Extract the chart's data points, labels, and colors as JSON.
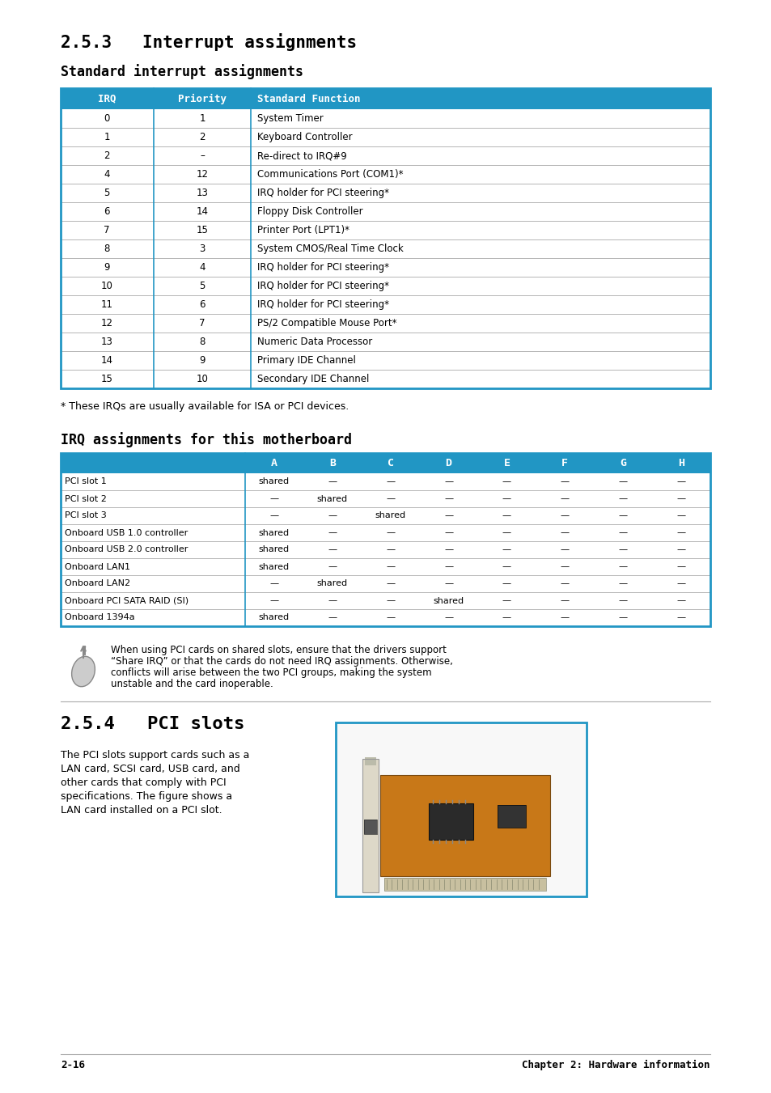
{
  "bg_color": "#ffffff",
  "header_blue": "#2196C4",
  "header_text_color": "#ffffff",
  "border_color": "#2196C4",
  "inner_line_color": "#aaaaaa",
  "section_title_1": "2.5.3   Interrupt assignments",
  "subsection_title_1": "Standard interrupt assignments",
  "subsection_title_2": "IRQ assignments for this motherboard",
  "section_title_2": "2.5.4   PCI slots",
  "table1_headers": [
    "IRQ",
    "Priority",
    "Standard Function"
  ],
  "table1_rows": [
    [
      "0",
      "1",
      "System Timer"
    ],
    [
      "1",
      "2",
      "Keyboard Controller"
    ],
    [
      "2",
      "–",
      "Re-direct to IRQ#9"
    ],
    [
      "4",
      "12",
      "Communications Port (COM1)*"
    ],
    [
      "5",
      "13",
      "IRQ holder for PCI steering*"
    ],
    [
      "6",
      "14",
      "Floppy Disk Controller"
    ],
    [
      "7",
      "15",
      "Printer Port (LPT1)*"
    ],
    [
      "8",
      "3",
      "System CMOS/Real Time Clock"
    ],
    [
      "9",
      "4",
      "IRQ holder for PCI steering*"
    ],
    [
      "10",
      "5",
      "IRQ holder for PCI steering*"
    ],
    [
      "11",
      "6",
      "IRQ holder for PCI steering*"
    ],
    [
      "12",
      "7",
      "PS/2 Compatible Mouse Port*"
    ],
    [
      "13",
      "8",
      "Numeric Data Processor"
    ],
    [
      "14",
      "9",
      "Primary IDE Channel"
    ],
    [
      "15",
      "10",
      "Secondary IDE Channel"
    ]
  ],
  "footnote": "* These IRQs are usually available for ISA or PCI devices.",
  "table2_col_headers": [
    "A",
    "B",
    "C",
    "D",
    "E",
    "F",
    "G",
    "H"
  ],
  "table2_rows": [
    [
      "PCI slot 1",
      "shared",
      "—",
      "—",
      "—",
      "—",
      "—",
      "—",
      "—"
    ],
    [
      "PCI slot 2",
      "—",
      "shared",
      "—",
      "—",
      "—",
      "—",
      "—",
      "—"
    ],
    [
      "PCI slot 3",
      "—",
      "—",
      "shared",
      "—",
      "—",
      "—",
      "—",
      "—"
    ],
    [
      "Onboard USB 1.0 controller",
      "shared",
      "—",
      "—",
      "—",
      "—",
      "—",
      "—",
      "—"
    ],
    [
      "Onboard USB 2.0 controller",
      "shared",
      "—",
      "—",
      "—",
      "—",
      "—",
      "—",
      "—"
    ],
    [
      "Onboard LAN1",
      "shared",
      "—",
      "—",
      "—",
      "—",
      "—",
      "—",
      "—"
    ],
    [
      "Onboard LAN2",
      "—",
      "shared",
      "—",
      "—",
      "—",
      "—",
      "—",
      "—"
    ],
    [
      "Onboard PCI SATA RAID (SI)",
      "—",
      "—",
      "—",
      "shared",
      "—",
      "—",
      "—",
      "—"
    ],
    [
      "Onboard 1394a",
      "shared",
      "—",
      "—",
      "—",
      "—",
      "—",
      "—",
      "—"
    ]
  ],
  "note_lines": [
    "When using PCI cards on shared slots, ensure that the drivers support",
    "“Share IRQ” or that the cards do not need IRQ assignments. Otherwise,",
    "conflicts will arise between the two PCI groups, making the system",
    "unstable and the card inoperable."
  ],
  "pci_lines": [
    "The PCI slots support cards such as a",
    "LAN card, SCSI card, USB card, and",
    "other cards that comply with PCI",
    "specifications. The figure shows a",
    "LAN card installed on a PCI slot."
  ],
  "footer_left": "2-16",
  "footer_right": "Chapter 2: Hardware information"
}
